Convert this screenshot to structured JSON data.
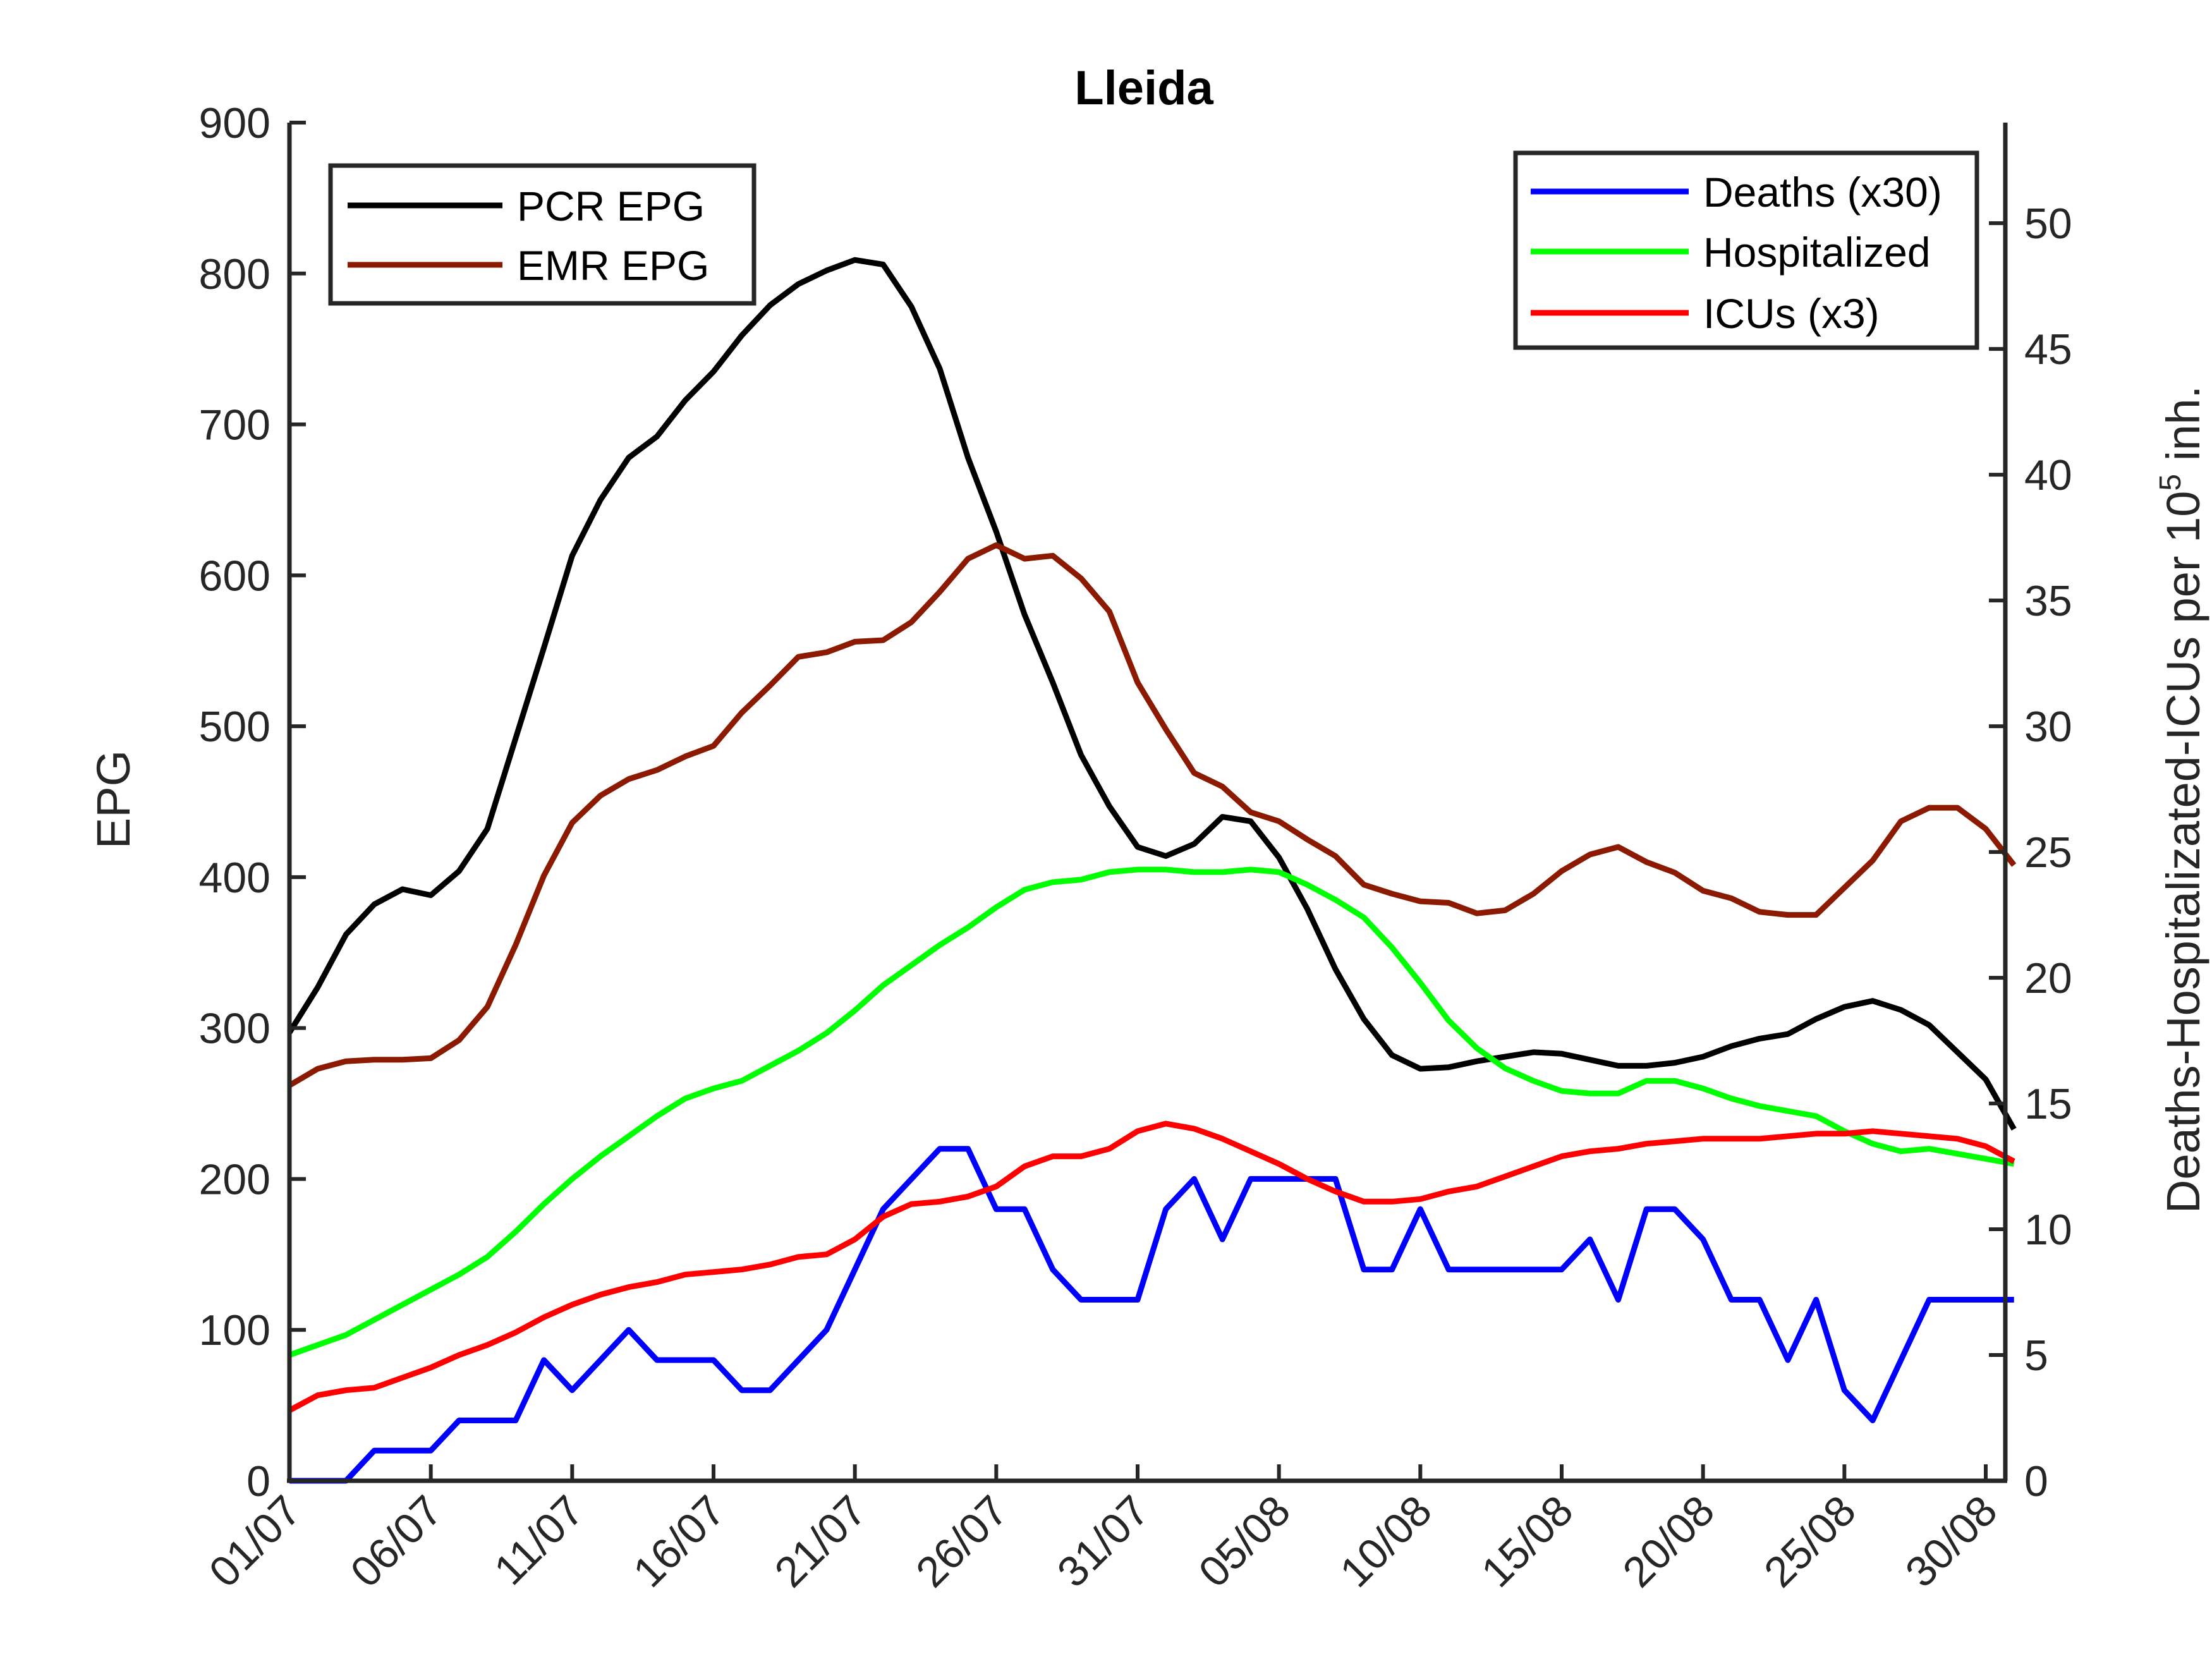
{
  "chart_data": {
    "type": "line",
    "title": "Lleida",
    "xlabel": "",
    "ylabel_left": "EPG",
    "ylabel_right": "Deaths-Hospitalizated-ICUs per 10",
    "ylabel_right_sup": "5",
    "ylabel_right_suffix": " inh.",
    "x_tick_labels": [
      "01/07",
      "06/07",
      "11/07",
      "16/07",
      "21/07",
      "26/07",
      "31/07",
      "05/08",
      "10/08",
      "15/08",
      "20/08",
      "25/08",
      "30/08"
    ],
    "ylim_left": [
      0,
      900
    ],
    "yticks_left": [
      0,
      100,
      200,
      300,
      400,
      500,
      600,
      700,
      800,
      900
    ],
    "ylim_right": [
      0,
      54
    ],
    "yticks_right": [
      0,
      5,
      10,
      15,
      20,
      25,
      30,
      35,
      40,
      45,
      50
    ],
    "grid": false,
    "legend_left": {
      "placement": "top-left",
      "entries": [
        "PCR EPG",
        "EMR EPG"
      ]
    },
    "legend_right": {
      "placement": "top-right",
      "entries": [
        "Deaths (x30)",
        "Hospitalized",
        "ICUs (x3)"
      ]
    },
    "series": [
      {
        "name": "PCR EPG",
        "axis": "left",
        "color": "#000000",
        "values": [
          297,
          327,
          362,
          382,
          392,
          388,
          404,
          432,
          492,
          552,
          613,
          650,
          678,
          692,
          716,
          735,
          759,
          779,
          793,
          802,
          809,
          806,
          778,
          737,
          678,
          629,
          574,
          529,
          481,
          447,
          420,
          414,
          422,
          440,
          437,
          413,
          379,
          339,
          306,
          282,
          273,
          274,
          278,
          281,
          284,
          283,
          279,
          275,
          275,
          277,
          281,
          288,
          293,
          296,
          306,
          314,
          318,
          312,
          302,
          284,
          266,
          233
        ]
      },
      {
        "name": "EMR EPG",
        "axis": "left",
        "color": "#8b1a00",
        "values": [
          262,
          273,
          278,
          279,
          279,
          280,
          292,
          314,
          355,
          401,
          436,
          454,
          465,
          471,
          480,
          487,
          509,
          527,
          546,
          549,
          556,
          557,
          569,
          589,
          611,
          620,
          611,
          613,
          598,
          576,
          529,
          498,
          469,
          460,
          443,
          437,
          425,
          414,
          395,
          389,
          384,
          383,
          376,
          378,
          389,
          404,
          415,
          420,
          410,
          403,
          391,
          386,
          377,
          375,
          375,
          393,
          411,
          437,
          446,
          446,
          432,
          408
        ]
      },
      {
        "name": "Deaths (x30)",
        "axis": "right",
        "color": "#0000ff",
        "values": [
          0,
          0,
          0,
          1.2,
          1.2,
          1.2,
          2.4,
          2.4,
          2.4,
          4.8,
          3.6,
          4.8,
          6.0,
          4.8,
          4.8,
          4.8,
          3.6,
          3.6,
          4.8,
          6.0,
          8.4,
          10.8,
          12.0,
          13.2,
          13.2,
          10.8,
          10.8,
          8.4,
          7.2,
          7.2,
          7.2,
          10.8,
          12.0,
          9.6,
          12.0,
          12.0,
          12.0,
          12.0,
          8.4,
          8.4,
          10.8,
          8.4,
          8.4,
          8.4,
          8.4,
          8.4,
          9.6,
          7.2,
          10.8,
          10.8,
          9.6,
          7.2,
          7.2,
          4.8,
          7.2,
          3.6,
          2.4,
          4.8,
          7.2,
          7.2,
          7.2,
          7.2
        ]
      },
      {
        "name": "Hospitalized",
        "axis": "right",
        "color": "#00ff00",
        "values": [
          5.0,
          5.4,
          5.8,
          6.4,
          7.0,
          7.6,
          8.2,
          8.9,
          9.9,
          11.0,
          12.0,
          12.9,
          13.7,
          14.5,
          15.2,
          15.6,
          15.9,
          16.5,
          17.1,
          17.8,
          18.7,
          19.7,
          20.5,
          21.3,
          22.0,
          22.8,
          23.5,
          23.8,
          23.9,
          24.2,
          24.3,
          24.3,
          24.2,
          24.2,
          24.3,
          24.2,
          23.7,
          23.1,
          22.4,
          21.2,
          19.8,
          18.3,
          17.2,
          16.4,
          15.9,
          15.5,
          15.4,
          15.4,
          15.9,
          15.9,
          15.6,
          15.2,
          14.9,
          14.7,
          14.5,
          13.9,
          13.4,
          13.1,
          13.2,
          13.0,
          12.8,
          12.6
        ]
      },
      {
        "name": "ICUs (x3)",
        "axis": "right",
        "color": "#ff0000",
        "values": [
          2.8,
          3.4,
          3.6,
          3.7,
          4.1,
          4.5,
          5.0,
          5.4,
          5.9,
          6.5,
          7.0,
          7.4,
          7.7,
          7.9,
          8.2,
          8.3,
          8.4,
          8.6,
          8.9,
          9.0,
          9.6,
          10.5,
          11.0,
          11.1,
          11.3,
          11.7,
          12.5,
          12.9,
          12.9,
          13.2,
          13.9,
          14.2,
          14.0,
          13.6,
          13.1,
          12.6,
          12.0,
          11.5,
          11.1,
          11.1,
          11.2,
          11.5,
          11.7,
          12.1,
          12.5,
          12.9,
          13.1,
          13.2,
          13.4,
          13.5,
          13.6,
          13.6,
          13.6,
          13.7,
          13.8,
          13.8,
          13.9,
          13.8,
          13.7,
          13.6,
          13.3,
          12.7
        ]
      }
    ]
  }
}
